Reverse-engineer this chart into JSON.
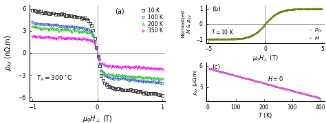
{
  "panel_a": {
    "title": "(a)",
    "xlabel": "$\\mu_0H_\\perp$ (T)",
    "ylabel": "$\\rho_{xy}$ (n$\\Omega$.m)",
    "xlim": [
      -1.05,
      1.05
    ],
    "ylim": [
      -6.5,
      6.5
    ],
    "yticks": [
      -6,
      -3,
      0,
      3,
      6
    ],
    "xticks": [
      -1,
      0,
      1
    ],
    "annotation": "$T_a = 300^\\circ$C",
    "series": [
      {
        "label": "10 K",
        "color": "#333333",
        "marker": "s",
        "amp": 4.5,
        "coer": 0.08,
        "slope": -1.2
      },
      {
        "label": "100 K",
        "color": "#2255cc",
        "marker": "o",
        "amp": 3.2,
        "coer": 0.07,
        "slope": -0.9
      },
      {
        "label": "200 K",
        "color": "#22bb22",
        "marker": "^",
        "amp": 2.8,
        "coer": 0.06,
        "slope": -0.7
      },
      {
        "label": "350 K",
        "color": "#ee00ee",
        "marker": "v",
        "amp": 1.7,
        "coer": 0.05,
        "slope": -0.5
      }
    ]
  },
  "panel_b": {
    "title": "(b)",
    "xlabel": "$\\mu_0H_\\perp$ (T)",
    "ylabel": "Normalized\n$M$ & $\\rho_{xy}$",
    "xlim": [
      -5.2,
      5.2
    ],
    "ylim": [
      -1.25,
      1.25
    ],
    "yticks": [
      -1,
      0,
      1
    ],
    "xticks": [
      -5,
      0,
      5
    ],
    "annotation": "$T = 10$ K",
    "rho_color": "#aaaaaa",
    "rho_marker": "o",
    "rho_label": "$\\rho_{xy}$",
    "M_color": "#777700",
    "M_marker": "^",
    "M_label": "$M$",
    "coer": 1.2
  },
  "panel_c": {
    "title": "(c)",
    "xlabel": "$T$ (K)",
    "ylabel": "$\\rho_{xx}$ ($\\mu\\Omega$.m)",
    "xlim": [
      -5,
      415
    ],
    "ylim": [
      4.35,
      6.15
    ],
    "yticks": [
      5,
      6
    ],
    "xticks": [
      0,
      100,
      200,
      300,
      400
    ],
    "annotation": "$H = 0$",
    "T_start": 5,
    "T_end": 400,
    "rho_start": 5.88,
    "rho_end": 4.48,
    "color": "#cc44cc",
    "marker": "o"
  }
}
